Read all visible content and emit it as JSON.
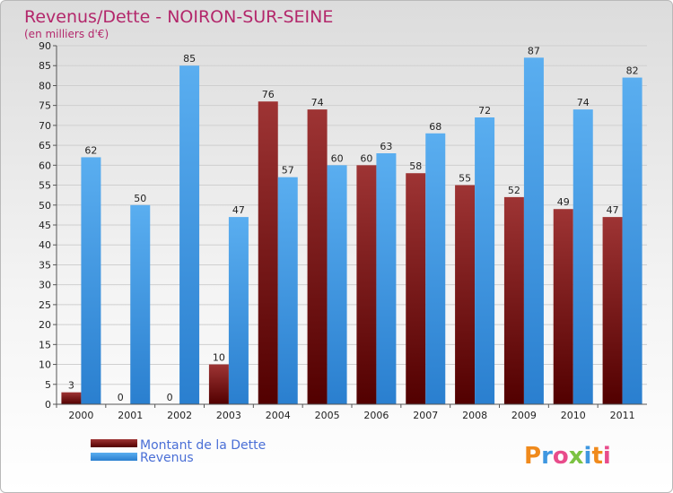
{
  "chart_data": {
    "type": "bar",
    "title": "Revenus/Dette - NOIRON-SUR-SEINE",
    "subtitle": "(en milliers d'€)",
    "categories": [
      "2000",
      "2001",
      "2002",
      "2003",
      "2004",
      "2005",
      "2006",
      "2007",
      "2008",
      "2009",
      "2010",
      "2011"
    ],
    "series": [
      {
        "name": "Montant de la Dette",
        "color": "#7a1212",
        "values": [
          3,
          0,
          0,
          10,
          76,
          74,
          60,
          58,
          55,
          52,
          49,
          47
        ]
      },
      {
        "name": "Revenus",
        "color": "#3f97e0",
        "values": [
          62,
          50,
          85,
          47,
          57,
          60,
          63,
          68,
          72,
          87,
          74,
          82
        ]
      }
    ],
    "ylim": [
      0,
      90
    ],
    "ytick_step": 5,
    "grid": true,
    "legend": "bottom-left",
    "logo_text": "Proxiti"
  }
}
